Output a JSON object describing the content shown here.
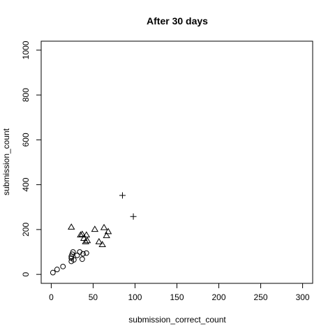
{
  "chart_data": {
    "type": "scatter",
    "title": "After 30 days",
    "xlabel": "submission_correct_count",
    "ylabel": "submission_count",
    "xlim": [
      -12,
      312
    ],
    "ylim": [
      -40,
      1040
    ],
    "xticks": [
      0,
      50,
      100,
      150,
      200,
      250,
      300
    ],
    "yticks": [
      0,
      200,
      400,
      600,
      800,
      1000
    ],
    "grid": false,
    "legend": "none",
    "series": [
      {
        "name": "circle",
        "symbol": "circle",
        "points": [
          {
            "x": 2,
            "y": 8
          },
          {
            "x": 7,
            "y": 22
          },
          {
            "x": 14,
            "y": 35
          },
          {
            "x": 24,
            "y": 58
          },
          {
            "x": 24,
            "y": 72
          },
          {
            "x": 24,
            "y": 80
          },
          {
            "x": 25,
            "y": 90
          },
          {
            "x": 26,
            "y": 100
          },
          {
            "x": 27,
            "y": 65
          },
          {
            "x": 31,
            "y": 85
          },
          {
            "x": 34,
            "y": 100
          },
          {
            "x": 37,
            "y": 68
          },
          {
            "x": 38,
            "y": 92
          },
          {
            "x": 42,
            "y": 95
          }
        ]
      },
      {
        "name": "triangle",
        "symbol": "triangle",
        "points": [
          {
            "x": 24,
            "y": 210
          },
          {
            "x": 35,
            "y": 175
          },
          {
            "x": 37,
            "y": 178
          },
          {
            "x": 39,
            "y": 160
          },
          {
            "x": 41,
            "y": 145
          },
          {
            "x": 42,
            "y": 175
          },
          {
            "x": 43,
            "y": 150
          },
          {
            "x": 52,
            "y": 200
          },
          {
            "x": 57,
            "y": 145
          },
          {
            "x": 61,
            "y": 132
          },
          {
            "x": 63,
            "y": 208
          },
          {
            "x": 66,
            "y": 172
          },
          {
            "x": 68,
            "y": 190
          }
        ]
      },
      {
        "name": "plus",
        "symbol": "plus",
        "points": [
          {
            "x": 85,
            "y": 352
          },
          {
            "x": 98,
            "y": 258
          }
        ]
      }
    ]
  }
}
